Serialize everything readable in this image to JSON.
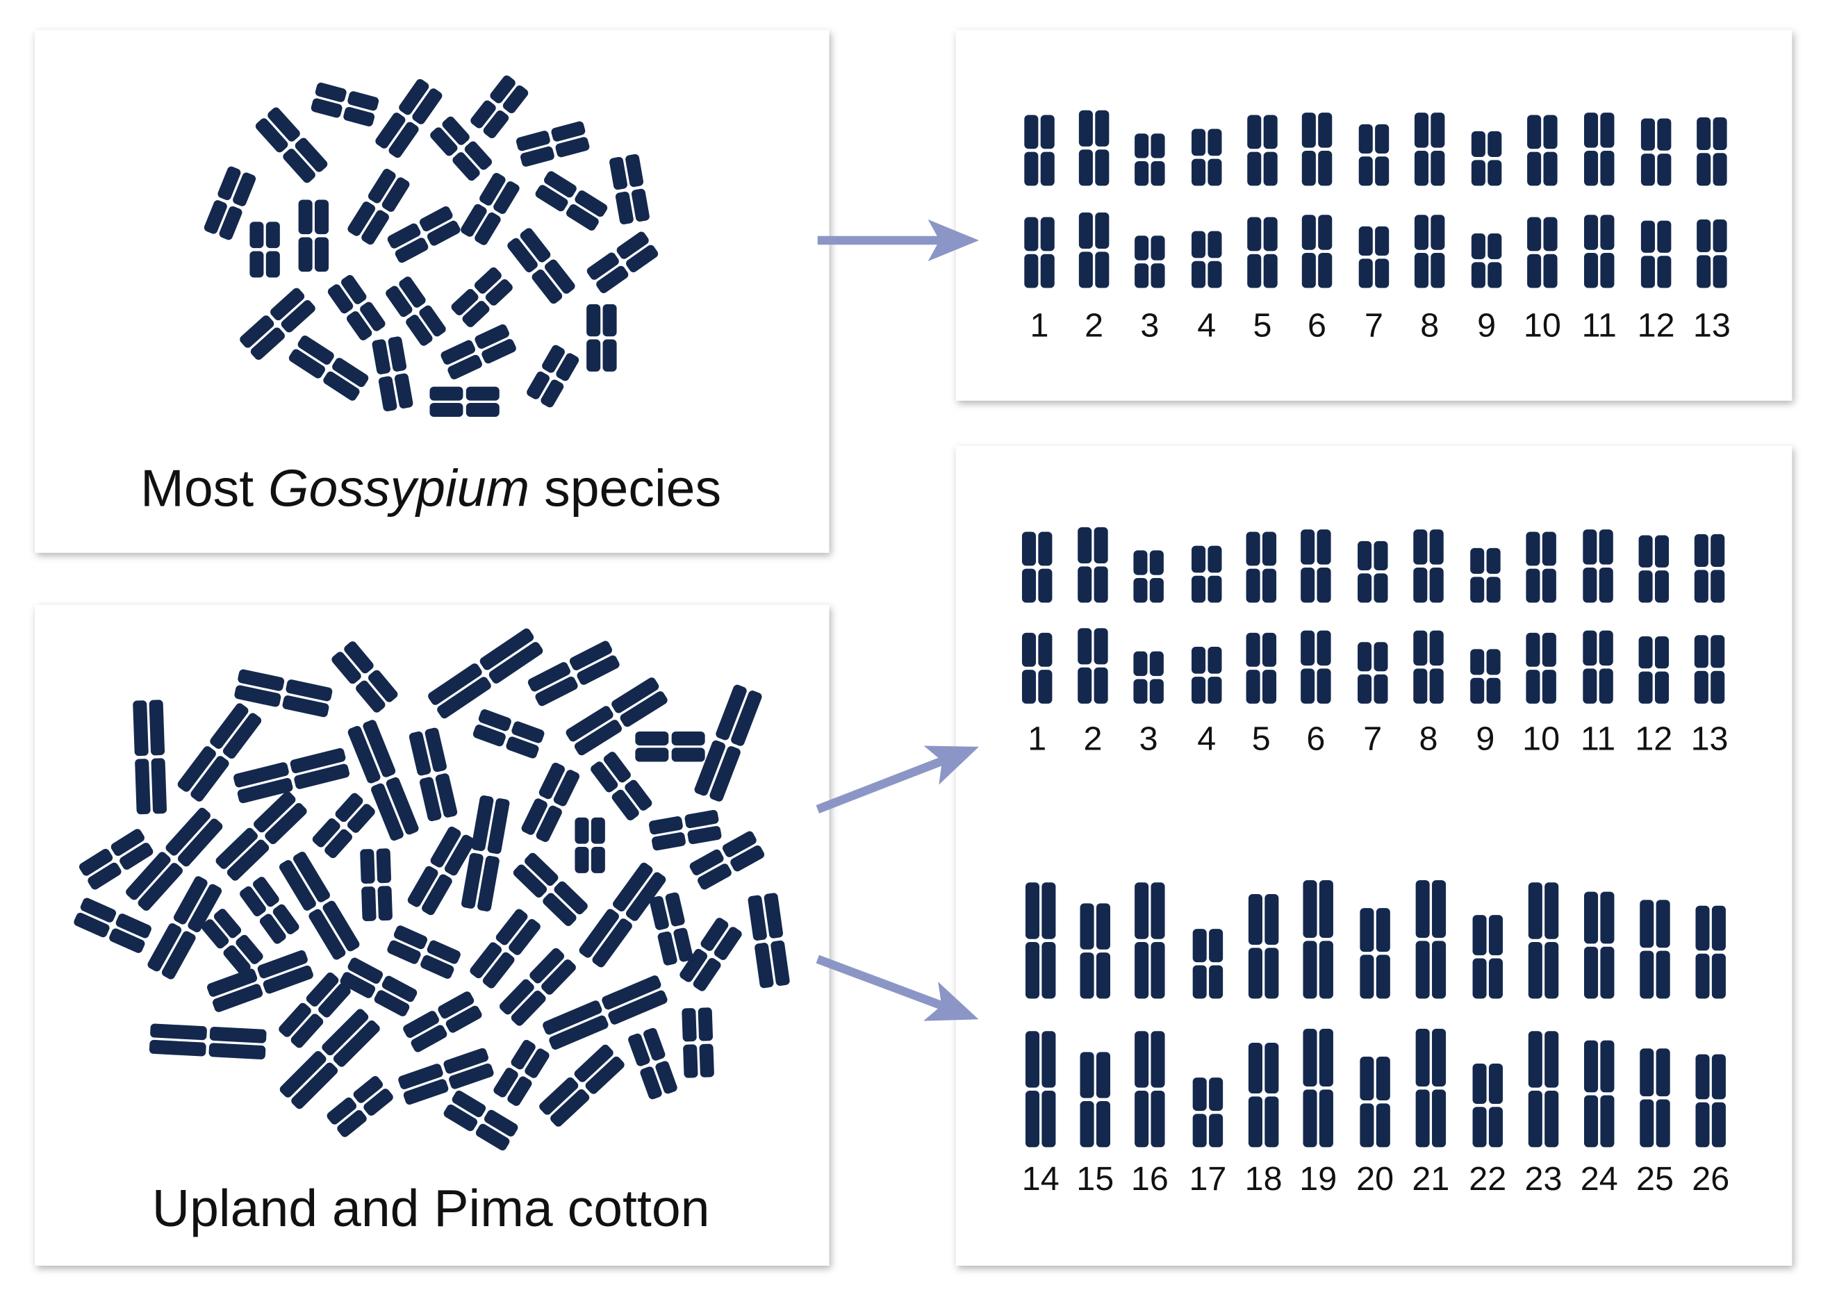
{
  "panels": {
    "diploid_spread": {
      "caption_prefix": "Most ",
      "caption_italic": "Gossypium",
      "caption_suffix": " species"
    },
    "tetraploid_spread": {
      "caption": "Upland and Pima cotton"
    },
    "diploid_karyotype": {
      "numbers": [
        "1",
        "2",
        "3",
        "4",
        "5",
        "6",
        "7",
        "8",
        "9",
        "10",
        "11",
        "12",
        "13"
      ]
    },
    "tetraploid_karyotype": {
      "a_numbers": [
        "1",
        "2",
        "3",
        "4",
        "5",
        "6",
        "7",
        "8",
        "9",
        "10",
        "11",
        "12",
        "13"
      ],
      "d_numbers": [
        "14",
        "15",
        "16",
        "17",
        "18",
        "19",
        "20",
        "21",
        "22",
        "23",
        "24",
        "25",
        "26"
      ]
    }
  },
  "colors": {
    "chromosome": "#14284d",
    "arrow": "#8b96c6",
    "caption_text": "#111111",
    "panel_background": "#ffffff",
    "page_background": "#ffffff"
  }
}
